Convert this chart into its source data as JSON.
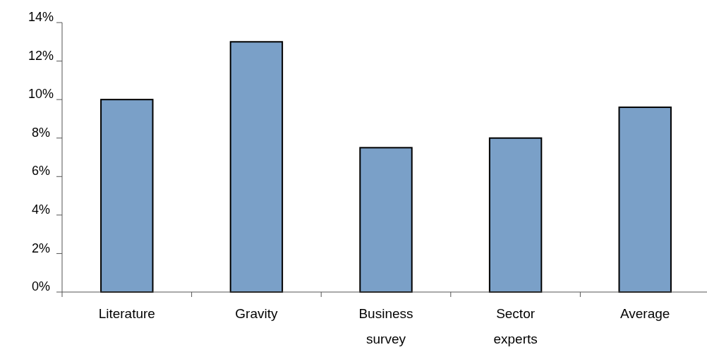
{
  "chart_data": {
    "type": "bar",
    "categories": [
      "Literature",
      "Gravity",
      "Business survey",
      "Sector experts",
      "Average"
    ],
    "values": [
      10,
      13,
      7.5,
      8,
      9.6
    ],
    "color": "#7aa0c8",
    "ylim": [
      0,
      14
    ],
    "yticks": [
      {
        "value": 0,
        "label": "0%"
      },
      {
        "value": 2,
        "label": "2%"
      },
      {
        "value": 4,
        "label": "4%"
      },
      {
        "value": 6,
        "label": "6%"
      },
      {
        "value": 8,
        "label": "8%"
      },
      {
        "value": 10,
        "label": "10%"
      },
      {
        "value": 12,
        "label": "12%"
      },
      {
        "value": 14,
        "label": "14%"
      }
    ]
  }
}
